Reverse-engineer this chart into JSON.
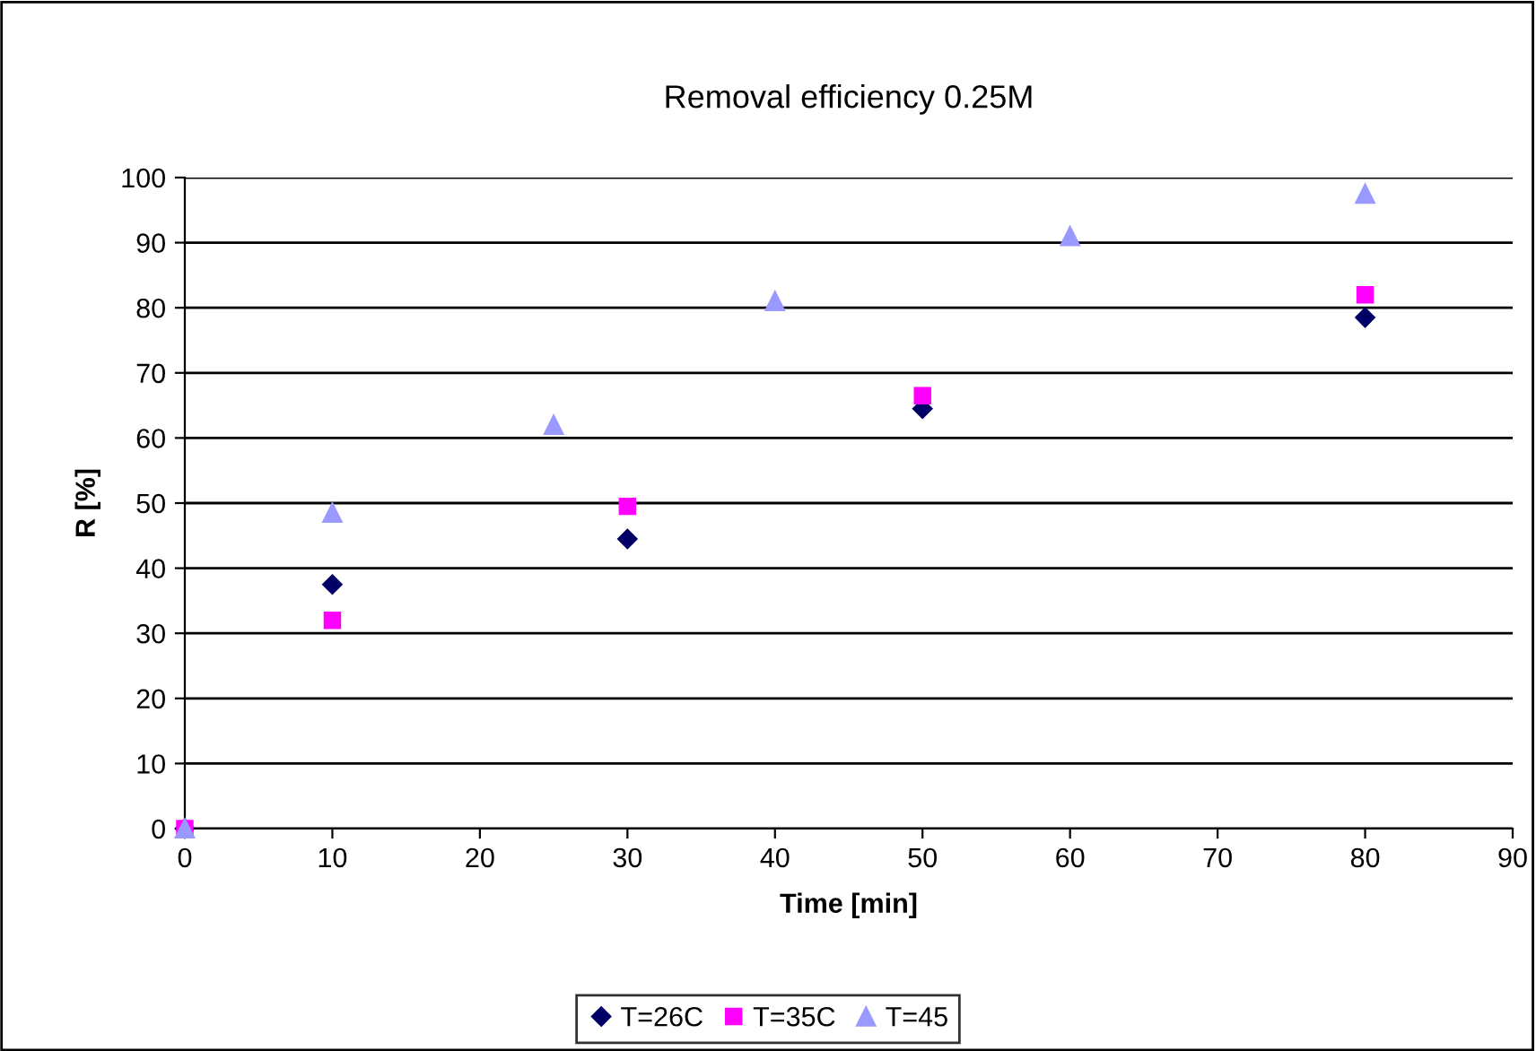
{
  "chart_data": {
    "type": "scatter",
    "title": "Removal efficiency 0.25M",
    "xlabel": "Time [min]",
    "ylabel": "R [%]",
    "xlim": [
      0,
      90
    ],
    "xticks": [
      0,
      10,
      20,
      30,
      40,
      50,
      60,
      70,
      80,
      90
    ],
    "ylim": [
      0,
      100
    ],
    "yticks": [
      0,
      10,
      20,
      30,
      40,
      50,
      60,
      70,
      80,
      90,
      100
    ],
    "grid": "y",
    "legend": "bottom",
    "series": [
      {
        "name": "T=26C",
        "color": "#000066",
        "marker": "diamond",
        "x": [
          0,
          10,
          30,
          50,
          80
        ],
        "values": [
          0,
          37.5,
          44.5,
          64.5,
          78.5
        ]
      },
      {
        "name": "T=35C",
        "color": "#ff00ff",
        "marker": "square",
        "x": [
          0,
          10,
          30,
          50,
          80
        ],
        "values": [
          0,
          32,
          49.5,
          66.5,
          82
        ]
      },
      {
        "name": "T=45",
        "color": "#9999ff",
        "marker": "triangle",
        "x": [
          0,
          10,
          25,
          40,
          60,
          80
        ],
        "values": [
          0,
          48.5,
          62,
          81,
          91,
          97.5
        ]
      }
    ]
  }
}
